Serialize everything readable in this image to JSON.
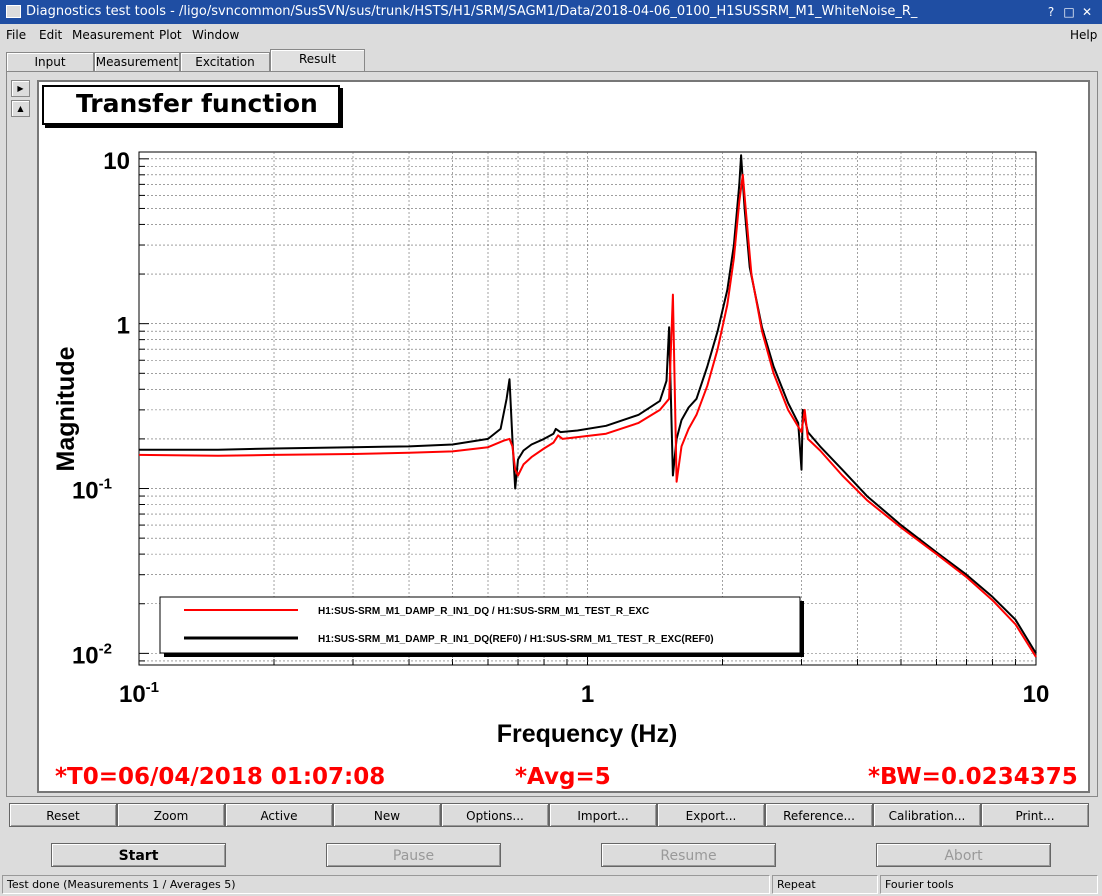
{
  "window": {
    "title": "Diagnostics test tools - /ligo/svncommon/SusSVN/sus/trunk/HSTS/H1/SRM/SAGM1/Data/2018-04-06_0100_H1SUSSRM_M1_WhiteNoise_R_"
  },
  "menu": [
    "File",
    "Edit",
    "Measurement",
    "Plot",
    "Window",
    "Help"
  ],
  "tabs": [
    "Input",
    "Measurement",
    "Excitation",
    "Result"
  ],
  "active_tab": "Result",
  "plot_title": "Transfer function",
  "chart_data": {
    "type": "line",
    "xscale": "log",
    "yscale": "log",
    "xlim": [
      0.1,
      10
    ],
    "ylim": [
      0.0085,
      11
    ],
    "xlabel": "Frequency (Hz)",
    "ylabel": "Magnitude",
    "xticks": [
      {
        "v": 0.1,
        "label": "10",
        "sup": "-1"
      },
      {
        "v": 1,
        "label": "1",
        "sup": ""
      },
      {
        "v": 10,
        "label": "10",
        "sup": ""
      }
    ],
    "yticks": [
      {
        "v": 10,
        "label": "10",
        "sup": ""
      },
      {
        "v": 1,
        "label": "1",
        "sup": ""
      },
      {
        "v": 0.1,
        "label": "10",
        "sup": "-1"
      },
      {
        "v": 0.01,
        "label": "10",
        "sup": "-2"
      }
    ],
    "series": [
      {
        "name": "H1:SUS-SRM_M1_DAMP_R_IN1_DQ / H1:SUS-SRM_M1_TEST_R_EXC",
        "color": "#ff0000",
        "x": [
          0.1,
          0.15,
          0.2,
          0.3,
          0.4,
          0.5,
          0.6,
          0.65,
          0.67,
          0.68,
          0.69,
          0.7,
          0.72,
          0.75,
          0.8,
          0.84,
          0.86,
          0.88,
          0.95,
          1.1,
          1.3,
          1.45,
          1.52,
          1.55,
          1.58,
          1.62,
          1.68,
          1.75,
          1.85,
          1.95,
          2.05,
          2.12,
          2.18,
          2.22,
          2.26,
          2.32,
          2.45,
          2.6,
          2.8,
          3.0,
          3.05,
          3.1,
          3.3,
          3.7,
          4.2,
          5,
          6,
          7,
          8,
          9,
          10
        ],
        "y": [
          0.16,
          0.158,
          0.16,
          0.162,
          0.165,
          0.168,
          0.178,
          0.195,
          0.2,
          0.18,
          0.13,
          0.12,
          0.14,
          0.155,
          0.175,
          0.19,
          0.21,
          0.2,
          0.205,
          0.215,
          0.25,
          0.3,
          0.35,
          1.5,
          0.11,
          0.18,
          0.23,
          0.28,
          0.42,
          0.7,
          1.3,
          2.5,
          5.5,
          8,
          4.5,
          2,
          0.9,
          0.5,
          0.3,
          0.22,
          0.3,
          0.2,
          0.17,
          0.12,
          0.085,
          0.058,
          0.04,
          0.029,
          0.021,
          0.015,
          0.0095
        ]
      },
      {
        "name": "H1:SUS-SRM_M1_DAMP_R_IN1_DQ(REF0) / H1:SUS-SRM_M1_TEST_R_EXC(REF0)",
        "color": "#000000",
        "x": [
          0.1,
          0.15,
          0.2,
          0.3,
          0.4,
          0.5,
          0.6,
          0.64,
          0.66,
          0.67,
          0.68,
          0.69,
          0.7,
          0.72,
          0.75,
          0.8,
          0.84,
          0.85,
          0.87,
          0.95,
          1.1,
          1.3,
          1.45,
          1.5,
          1.52,
          1.55,
          1.58,
          1.62,
          1.68,
          1.75,
          1.85,
          1.95,
          2.05,
          2.12,
          2.18,
          2.2,
          2.24,
          2.3,
          2.45,
          2.6,
          2.8,
          2.95,
          3.0,
          3.02,
          3.1,
          3.3,
          3.7,
          4.2,
          5,
          6,
          7,
          8,
          9,
          10
        ],
        "y": [
          0.172,
          0.172,
          0.175,
          0.178,
          0.18,
          0.185,
          0.2,
          0.23,
          0.35,
          0.46,
          0.2,
          0.1,
          0.15,
          0.17,
          0.185,
          0.2,
          0.215,
          0.23,
          0.22,
          0.225,
          0.24,
          0.28,
          0.34,
          0.45,
          0.95,
          0.12,
          0.2,
          0.26,
          0.31,
          0.35,
          0.55,
          0.9,
          1.6,
          3,
          7,
          10.5,
          5,
          2.2,
          0.95,
          0.55,
          0.33,
          0.25,
          0.13,
          0.3,
          0.22,
          0.18,
          0.13,
          0.09,
          0.06,
          0.041,
          0.03,
          0.022,
          0.016,
          0.01
        ]
      }
    ],
    "legend": "bottom-left"
  },
  "info": {
    "t0": "*T0=06/04/2018 01:07:08",
    "avg": "*Avg=5",
    "bw": "*BW=0.0234375"
  },
  "plot_buttons": [
    "Reset",
    "Zoom",
    "Active",
    "New",
    "Options...",
    "Import...",
    "Export...",
    "Reference...",
    "Calibration...",
    "Print..."
  ],
  "control_buttons": {
    "start": "Start",
    "pause": "Pause",
    "resume": "Resume",
    "abort": "Abort"
  },
  "status": {
    "message": "Test done (Measurements 1 / Averages 5)",
    "repeat": "Repeat",
    "tools": "Fourier tools"
  }
}
